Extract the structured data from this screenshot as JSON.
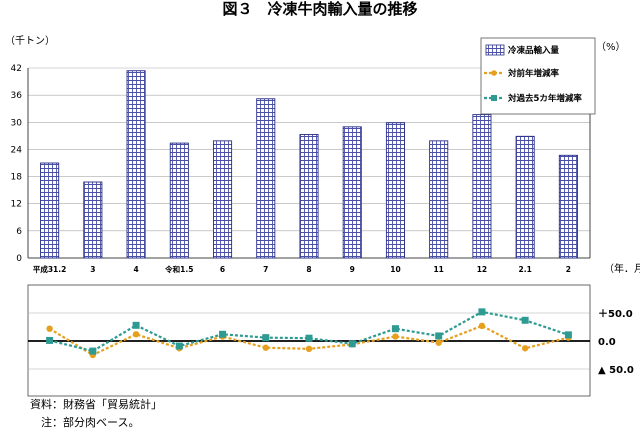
{
  "title": "図３　冷凍牛肉輸入量の推移",
  "colors": {
    "bar_stroke": "#2a2f86",
    "bar_pattern": "#4a4fa8",
    "yoy": "#e6a020",
    "fiveyear": "#2e9b93",
    "axis": "#444444",
    "grid": "#aaaaaa"
  },
  "chart_data": {
    "type": "bar",
    "categories": [
      "平成31.2",
      "3",
      "4",
      "令和1.5",
      "6",
      "7",
      "8",
      "9",
      "10",
      "11",
      "12",
      "2.1",
      "2"
    ],
    "ylabel": "（千トン）",
    "xlabel": "（年．月）",
    "y_right_label": "（%）",
    "yticks": [
      "0",
      "6",
      "12",
      "18",
      "24",
      "30",
      "36",
      "42"
    ],
    "ylim": [
      0,
      42
    ],
    "right_ticks": [
      "＋50.0",
      "0.0",
      "▲ 50.0"
    ],
    "right_ylim": [
      -50,
      50
    ],
    "series": [
      {
        "name": "冷凍品輸入量",
        "type": "bar",
        "values": [
          21.0,
          16.8,
          41.4,
          25.4,
          25.9,
          35.2,
          27.3,
          29.0,
          29.9,
          25.9,
          31.7,
          26.9,
          22.7
        ]
      },
      {
        "name": "対前年増減率",
        "type": "line",
        "values": [
          22,
          -25,
          12,
          -13,
          8,
          -12,
          -14,
          -6,
          8,
          -3,
          27,
          -13,
          6
        ]
      },
      {
        "name": "対過去5カ年増減率",
        "type": "line",
        "values": [
          1,
          -18,
          28,
          -9,
          12,
          6,
          5,
          -5,
          22,
          9,
          52,
          37,
          11
        ]
      }
    ]
  },
  "notes": [
    "資料：財務省「貿易統計」",
    "　注：部分肉ベース。"
  ]
}
